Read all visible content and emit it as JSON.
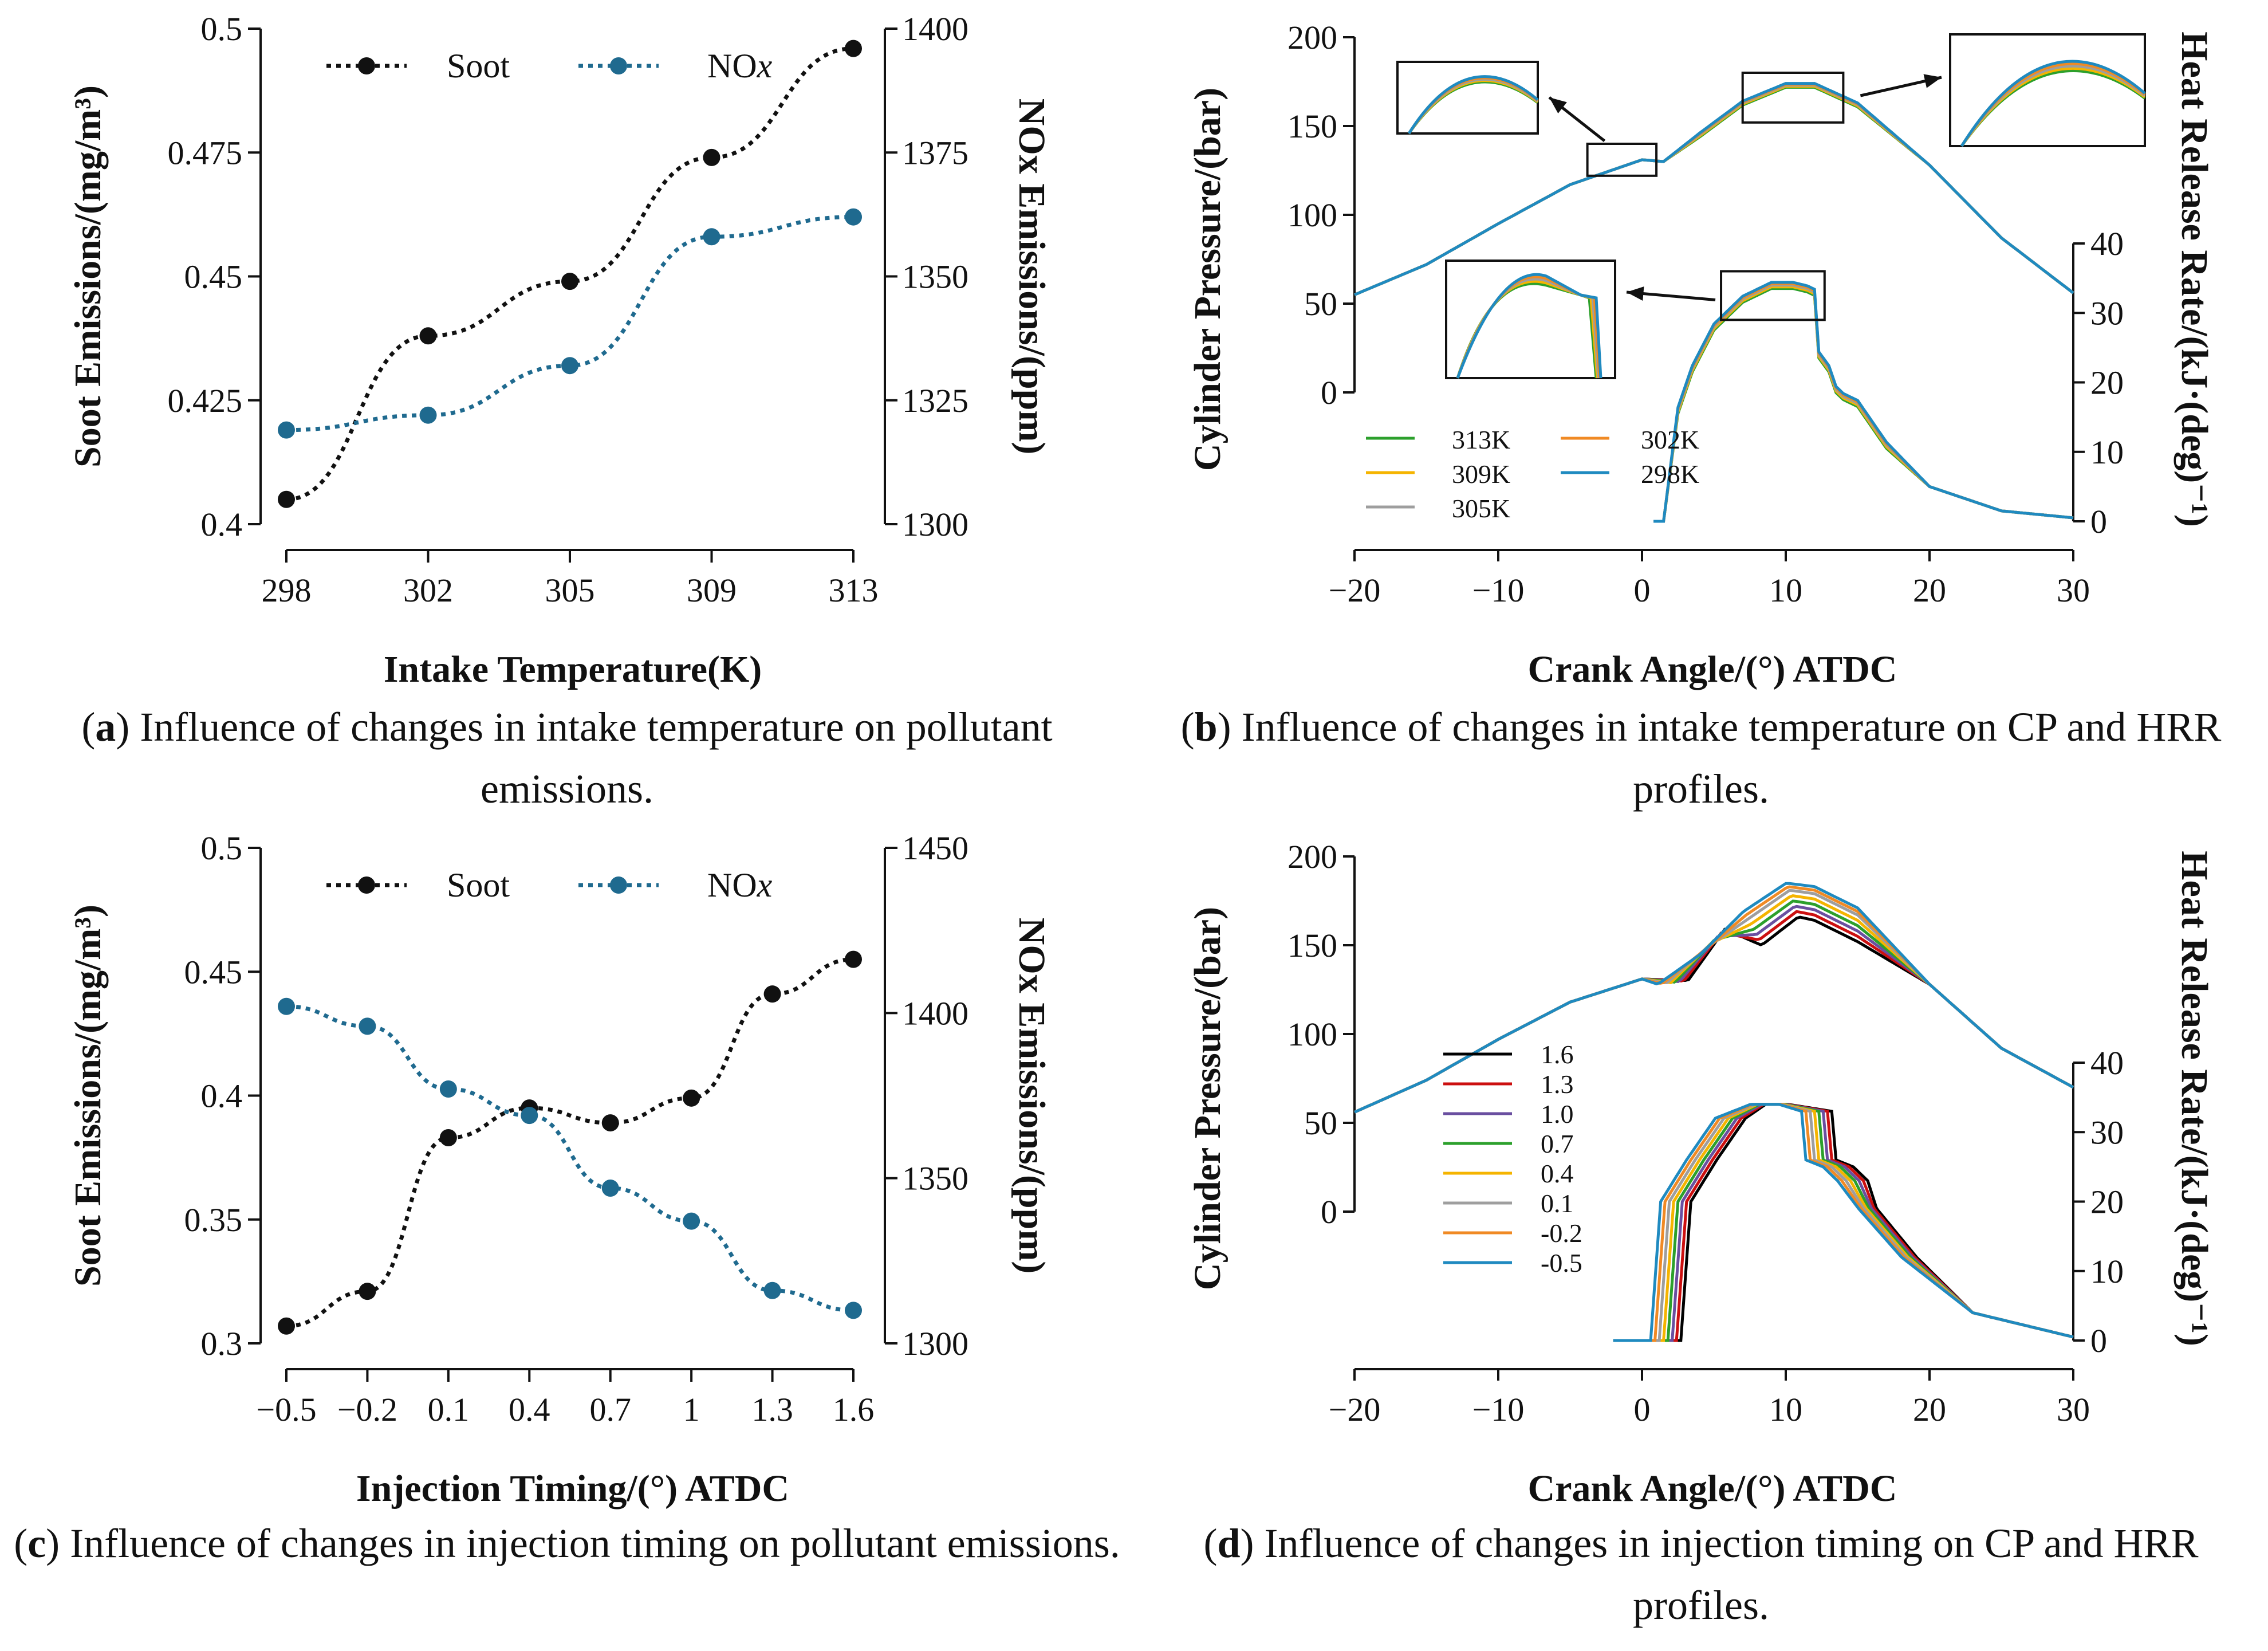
{
  "captions": {
    "a": {
      "label": "a",
      "text": "Influence of changes in intake temperature on pollutant emissions."
    },
    "b": {
      "label": "b",
      "text": "Influence of changes in intake temperature on CP and HRR profiles."
    },
    "c": {
      "label": "c",
      "text": "Influence of changes in injection timing on pollutant emissions."
    },
    "d": {
      "label": "d",
      "text": "Influence of changes in injection timing on CP and HRR profiles."
    }
  },
  "colors": {
    "soot": "#111111",
    "nox": "#1f6a8f",
    "c313": "#2ca02c",
    "c309": "#f5b400",
    "c305": "#9e9e9e",
    "c302": "#f08a24",
    "c298": "#1f8ac0",
    "t1_6": "#000000",
    "t1_3": "#cc1010",
    "t1_0": "#6a4fa0",
    "t0_7": "#2ca02c",
    "t0_4": "#f5b400",
    "t0_1": "#9e9e9e",
    "tm0_2": "#f08a24",
    "tm0_5": "#1f8ac0"
  },
  "chart_data": [
    {
      "id": "a",
      "type": "line",
      "xlabel": "Intake Temperature(K)",
      "ylabel_left": "Soot Emissions/(mg/m³)",
      "ylabel_right": "NOx Emissions/(ppm)",
      "categories": [
        "298",
        "302",
        "305",
        "309",
        "313"
      ],
      "ylim_left": [
        0.4,
        0.5
      ],
      "yticks_left": [
        "0.4",
        "0.425",
        "0.45",
        "0.475",
        "0.5"
      ],
      "ylim_right": [
        1300,
        1400
      ],
      "yticks_right": [
        "1300",
        "1325",
        "1350",
        "1375",
        "1400"
      ],
      "legend": [
        "Soot",
        "NOx"
      ],
      "series": [
        {
          "name": "Soot",
          "axis": "left",
          "values": [
            0.405,
            0.438,
            0.449,
            0.474,
            0.496
          ]
        },
        {
          "name": "NOx",
          "axis": "right",
          "values": [
            1319,
            1322,
            1332,
            1358,
            1362
          ]
        }
      ]
    },
    {
      "id": "b",
      "type": "line",
      "xlabel": "Crank Angle/(°) ATDC",
      "ylabel_left": "Cylinder Pressure/(bar)",
      "ylabel_right": "Heat Release Rate/(kJ·(deg)⁻¹)",
      "xlim": [
        -20,
        30
      ],
      "xticks": [
        "−20",
        "−10",
        "0",
        "10",
        "20",
        "30"
      ],
      "yticks_left": [
        "0",
        "50",
        "100",
        "150",
        "200"
      ],
      "yticks_right": [
        "0",
        "10",
        "20",
        "30",
        "40"
      ],
      "legend": [
        "313K",
        "309K",
        "305K",
        "302K",
        "298K"
      ],
      "pressure": {
        "x": [
          -20,
          -15,
          -10,
          -5,
          0,
          1.5,
          4,
          7,
          10,
          12,
          15,
          20,
          25,
          30
        ],
        "y": [
          55,
          72,
          95,
          117,
          131,
          130,
          145,
          163,
          173,
          173,
          162,
          128,
          87,
          56
        ]
      },
      "hrr": {
        "x": [
          0.8,
          1.5,
          2.5,
          3.5,
          5,
          7,
          9,
          10.5,
          11.5,
          12,
          12.3,
          13,
          13.5,
          14,
          15,
          17,
          20,
          25,
          30
        ],
        "y": [
          0,
          0,
          16,
          22,
          28,
          32,
          34,
          34,
          33.5,
          33,
          24,
          22,
          19,
          18,
          17,
          11,
          5,
          1.5,
          0.5
        ]
      }
    },
    {
      "id": "c",
      "type": "line",
      "xlabel": "Injection Timing/(°) ATDC",
      "ylabel_left": "Soot Emissions/(mg/m³)",
      "ylabel_right": "NOx Emissions/(ppm)",
      "categories": [
        "−0.5",
        "−0.2",
        "0.1",
        "0.4",
        "0.7",
        "1",
        "1.3",
        "1.6"
      ],
      "ylim_left": [
        0.3,
        0.5
      ],
      "yticks_left": [
        "0.3",
        "0.35",
        "0.4",
        "0.45",
        "0.5"
      ],
      "ylim_right": [
        1300,
        1450
      ],
      "yticks_right": [
        "1300",
        "1350",
        "1400",
        "1450"
      ],
      "legend": [
        "Soot",
        "NOx"
      ],
      "series": [
        {
          "name": "Soot",
          "axis": "left",
          "values": [
            0.307,
            0.321,
            0.383,
            0.395,
            0.389,
            0.399,
            0.441,
            0.455
          ]
        },
        {
          "name": "NOx",
          "axis": "right",
          "values": [
            1402,
            1396,
            1377,
            1369,
            1347,
            1337,
            1316,
            1310
          ]
        }
      ]
    },
    {
      "id": "d",
      "type": "line",
      "xlabel": "Crank Angle/(°) ATDC",
      "ylabel_left": "Cylinder Pressure/(bar)",
      "ylabel_right": "Heat Release Rate/(kJ·(deg)⁻¹)",
      "xlim": [
        -20,
        30
      ],
      "xticks": [
        "−20",
        "−10",
        "0",
        "10",
        "20",
        "30"
      ],
      "yticks_left": [
        "0",
        "50",
        "100",
        "150",
        "200"
      ],
      "yticks_right": [
        "0",
        "10",
        "20",
        "30",
        "40"
      ],
      "legend": [
        "1.6",
        "1.3",
        "1.0",
        "0.7",
        "0.4",
        "0.1",
        "-0.2",
        "-0.5"
      ],
      "pressure_base": {
        "x": [
          -20,
          -15,
          -10,
          -5,
          0
        ],
        "y": [
          56,
          74,
          97,
          118,
          131
        ]
      },
      "pressure_peaks": [
        168,
        171,
        174,
        177,
        180,
        183,
        185,
        187
      ],
      "hrr_shifts": [
        2.2,
        1.9,
        1.6,
        1.3,
        1.0,
        0.7,
        0.4,
        0.1
      ]
    }
  ]
}
